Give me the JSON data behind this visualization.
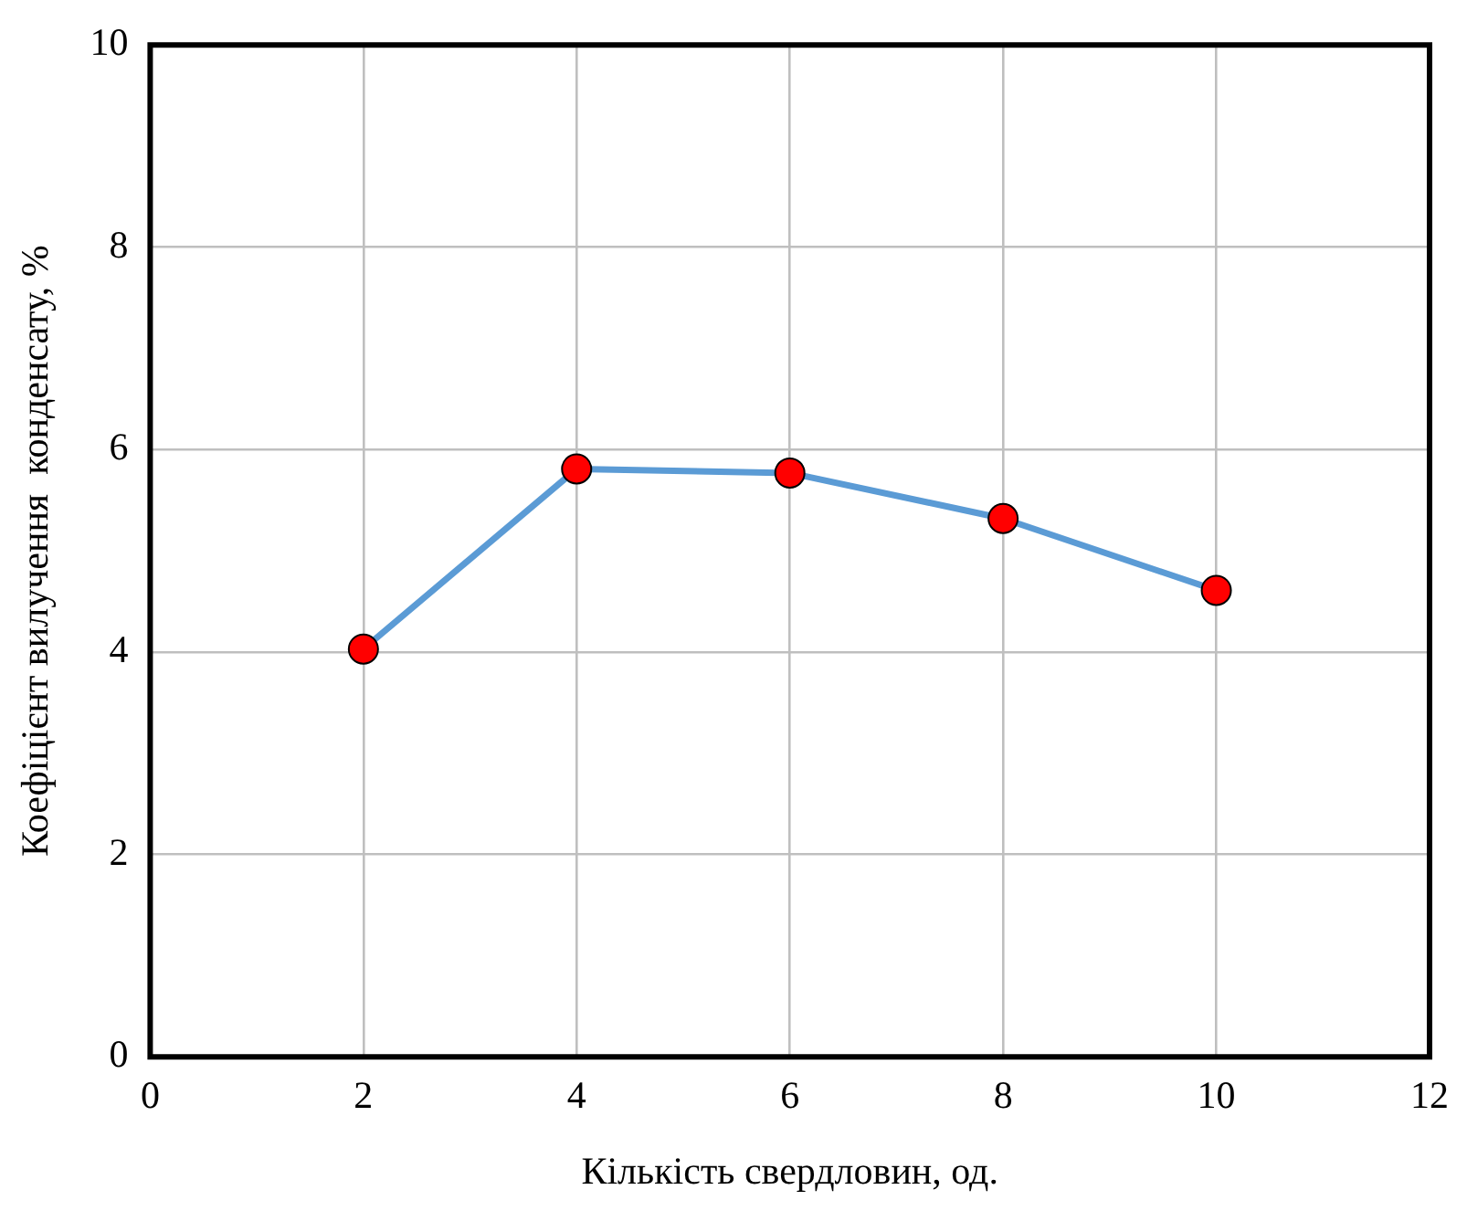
{
  "chart_data": {
    "type": "line",
    "xlabel": "Кількість свердловин, од.",
    "ylabel": "Коефіцієнт вилучення  конденсату, %",
    "x": [
      2,
      4,
      6,
      8,
      10
    ],
    "series": [
      {
        "color": "#5b9bd5",
        "colors": [
          "#ff0000",
          "#ff0000",
          "#ff0000",
          "#ff0000",
          "#ff0000"
        ],
        "values": [
          4.03,
          5.81,
          5.77,
          5.32,
          4.61
        ]
      }
    ],
    "xlim": [
      0,
      12
    ],
    "xticks": [
      0,
      2,
      4,
      6,
      8,
      10,
      12
    ],
    "ylim": [
      0,
      10
    ],
    "yticks": [
      0,
      2,
      4,
      6,
      8,
      10
    ],
    "grid": true,
    "legend": false,
    "marker": "circle",
    "line_style": "solid"
  }
}
